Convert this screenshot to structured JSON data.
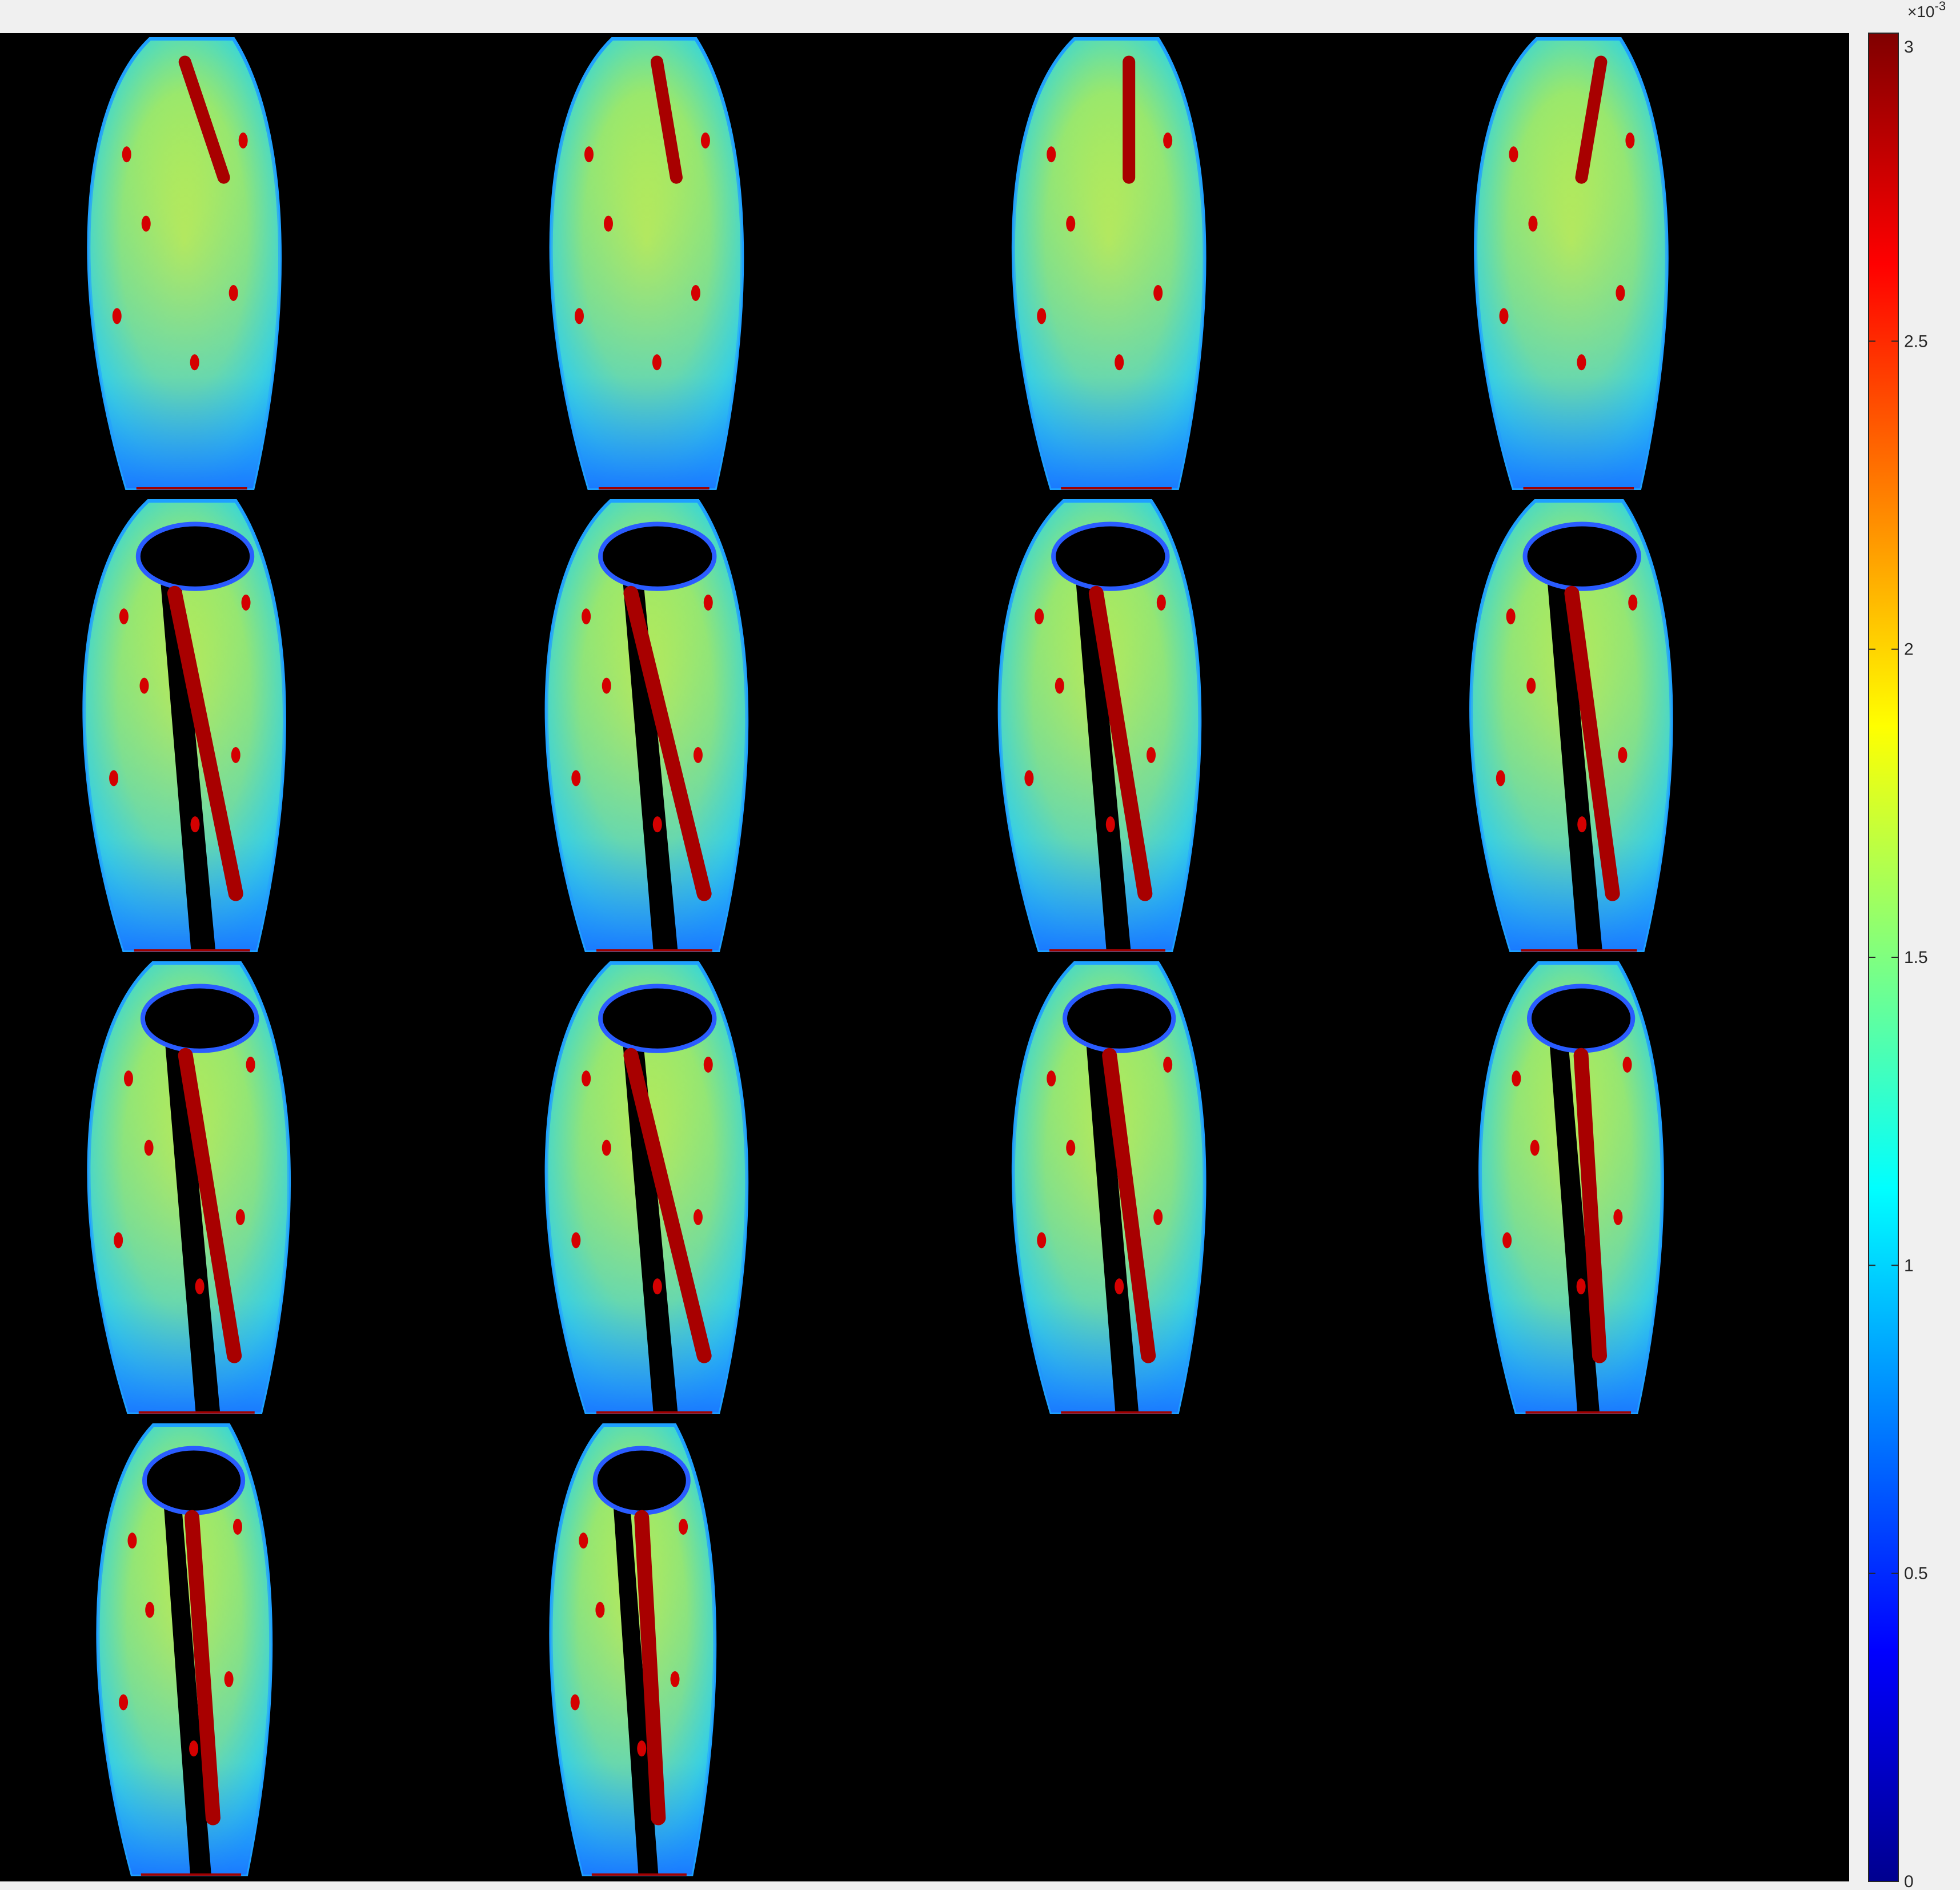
{
  "chart_data": {
    "type": "heatmap",
    "title": "",
    "description_type": "image montage with colorbar",
    "montage": {
      "rows": 4,
      "cols": 4,
      "panels_filled": 14,
      "background": "#000000"
    },
    "colorbar": {
      "colormap": "jet",
      "clim": [
        0,
        3
      ],
      "ticks": [
        0,
        0.5,
        1,
        1.5,
        2,
        2.5,
        3
      ],
      "tick_labels": [
        "0",
        "0.5",
        "1",
        "1.5",
        "2",
        "2.5",
        "3"
      ],
      "exponent_base": "×10",
      "exponent_power": "-3",
      "location": "right"
    }
  },
  "colors": {
    "figure_bg": "#f0f0f0",
    "axes_bg": "#000000",
    "tick_color": "#262626"
  }
}
